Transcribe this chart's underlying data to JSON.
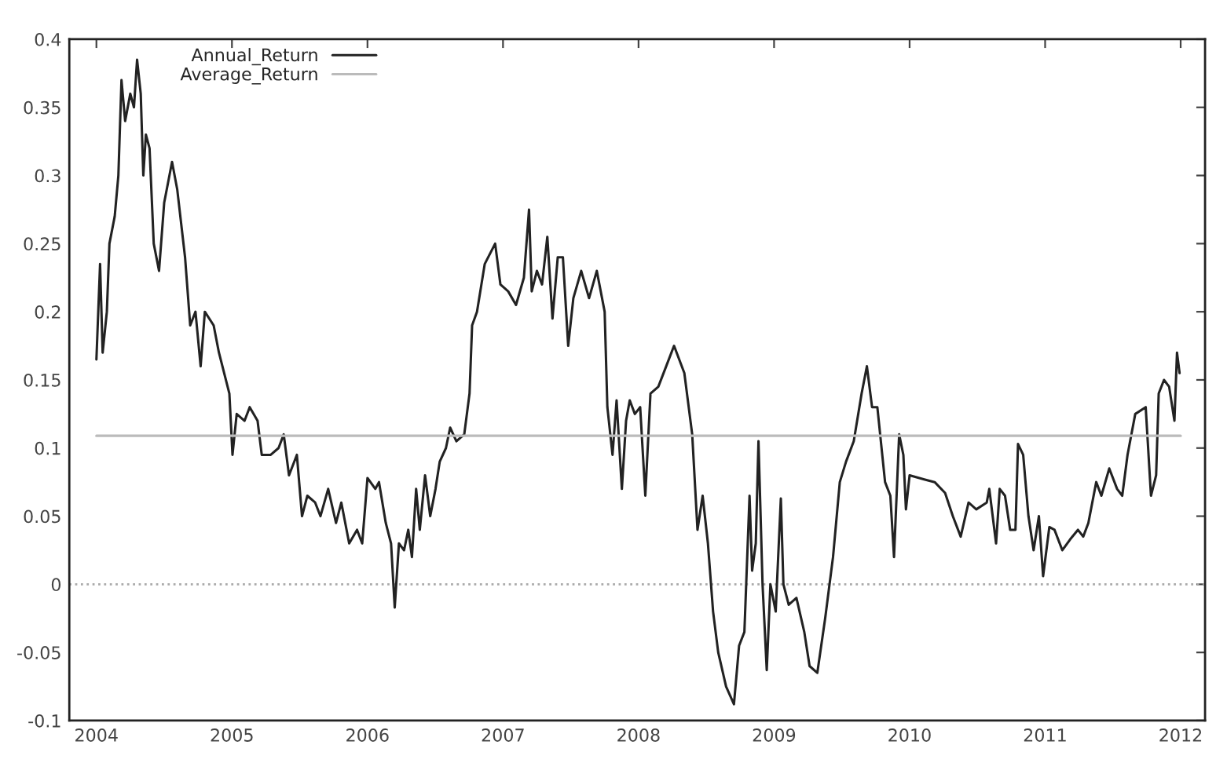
{
  "chart_data": {
    "type": "line",
    "xlim": [
      2003.8,
      2012.18
    ],
    "ylim": [
      -0.1,
      0.4
    ],
    "xticks": [
      2004,
      2005,
      2006,
      2007,
      2008,
      2009,
      2010,
      2011,
      2012
    ],
    "yticks": [
      -0.1,
      -0.05,
      0,
      0.05,
      0.1,
      0.15,
      0.2,
      0.25,
      0.3,
      0.35,
      0.4
    ],
    "grid": false,
    "legend": "top left",
    "marker": "none",
    "line_style": "solid",
    "ref_lines": [
      {
        "axis": "y",
        "value": 0,
        "color": "#aaaaaa",
        "line_style": "dotted"
      }
    ],
    "series": [
      {
        "name": "Annual_Return",
        "color": "#222222",
        "x": [
          2004.0,
          2004.027,
          2004.046,
          2004.077,
          2004.096,
          2004.135,
          2004.162,
          2004.185,
          2004.212,
          2004.25,
          2004.277,
          2004.3,
          2004.327,
          2004.346,
          2004.365,
          2004.392,
          2004.423,
          2004.462,
          2004.5,
          2004.558,
          2004.596,
          2004.654,
          2004.692,
          2004.731,
          2004.769,
          2004.8,
          2004.865,
          2004.904,
          2004.981,
          2005.004,
          2005.035,
          2005.093,
          2005.131,
          2005.189,
          2005.22,
          2005.286,
          2005.344,
          2005.382,
          2005.421,
          2005.479,
          2005.517,
          2005.556,
          2005.614,
          2005.653,
          2005.71,
          2005.768,
          2005.807,
          2005.865,
          2005.923,
          2005.961,
          2006.0,
          2006.058,
          2006.085,
          2006.135,
          2006.174,
          2006.201,
          2006.232,
          2006.27,
          2006.301,
          2006.328,
          2006.359,
          2006.386,
          2006.425,
          2006.463,
          2006.502,
          2006.533,
          2006.579,
          2006.61,
          2006.656,
          2006.714,
          2006.753,
          2006.772,
          2006.808,
          2006.865,
          2006.942,
          2006.981,
          2007.038,
          2007.096,
          2007.154,
          2007.192,
          2007.212,
          2007.25,
          2007.288,
          2007.327,
          2007.365,
          2007.404,
          2007.442,
          2007.481,
          2007.519,
          2007.577,
          2007.635,
          2007.692,
          2007.75,
          2007.77,
          2007.808,
          2007.838,
          2007.877,
          2007.908,
          2007.935,
          2007.973,
          2008.012,
          2008.05,
          2008.088,
          2008.146,
          2008.204,
          2008.262,
          2008.338,
          2008.396,
          2008.435,
          2008.473,
          2008.512,
          2008.55,
          2008.588,
          2008.646,
          2008.704,
          2008.742,
          2008.781,
          2008.819,
          2008.838,
          2008.865,
          2008.885,
          2008.915,
          2008.946,
          2008.973,
          2009.012,
          2009.05,
          2009.069,
          2009.108,
          2009.165,
          2009.223,
          2009.262,
          2009.319,
          2009.377,
          2009.435,
          2009.485,
          2009.531,
          2009.588,
          2009.646,
          2009.685,
          2009.723,
          2009.762,
          2009.819,
          2009.858,
          2009.885,
          2009.923,
          2009.954,
          2009.973,
          2010.0,
          2010.108,
          2010.185,
          2010.262,
          2010.319,
          2010.377,
          2010.435,
          2010.492,
          2010.569,
          2010.588,
          2010.638,
          2010.665,
          2010.704,
          2010.742,
          2010.781,
          2010.8,
          2010.838,
          2010.877,
          2010.915,
          2010.954,
          2010.985,
          2011.031,
          2011.069,
          2011.127,
          2011.185,
          2011.242,
          2011.281,
          2011.319,
          2011.377,
          2011.415,
          2011.473,
          2011.531,
          2011.569,
          2011.608,
          2011.665,
          2011.742,
          2011.781,
          2011.819,
          2011.838,
          2011.877,
          2011.915,
          2011.954,
          2011.973,
          2011.992
        ],
        "values": [
          0.165,
          0.235,
          0.17,
          0.2,
          0.25,
          0.27,
          0.3,
          0.37,
          0.34,
          0.36,
          0.35,
          0.385,
          0.36,
          0.3,
          0.33,
          0.32,
          0.25,
          0.23,
          0.28,
          0.31,
          0.29,
          0.24,
          0.19,
          0.2,
          0.16,
          0.2,
          0.19,
          0.17,
          0.14,
          0.095,
          0.125,
          0.12,
          0.13,
          0.12,
          0.095,
          0.095,
          0.1,
          0.11,
          0.08,
          0.095,
          0.05,
          0.065,
          0.06,
          0.05,
          0.07,
          0.045,
          0.06,
          0.03,
          0.04,
          0.03,
          0.078,
          0.07,
          0.075,
          0.045,
          0.03,
          -0.017,
          0.03,
          0.025,
          0.04,
          0.02,
          0.07,
          0.04,
          0.08,
          0.05,
          0.07,
          0.09,
          0.1,
          0.115,
          0.105,
          0.11,
          0.14,
          0.19,
          0.2,
          0.235,
          0.25,
          0.22,
          0.215,
          0.205,
          0.225,
          0.275,
          0.215,
          0.23,
          0.22,
          0.255,
          0.195,
          0.24,
          0.24,
          0.175,
          0.21,
          0.23,
          0.21,
          0.23,
          0.2,
          0.13,
          0.095,
          0.135,
          0.07,
          0.12,
          0.135,
          0.125,
          0.13,
          0.065,
          0.14,
          0.145,
          0.16,
          0.175,
          0.155,
          0.11,
          0.04,
          0.065,
          0.03,
          -0.02,
          -0.05,
          -0.075,
          -0.088,
          -0.045,
          -0.035,
          0.065,
          0.01,
          0.03,
          0.105,
          0.0,
          -0.063,
          0.0,
          -0.02,
          0.063,
          0.0,
          -0.015,
          -0.01,
          -0.035,
          -0.06,
          -0.065,
          -0.025,
          0.02,
          0.075,
          0.09,
          0.105,
          0.14,
          0.16,
          0.13,
          0.13,
          0.075,
          0.065,
          0.02,
          0.11,
          0.095,
          0.055,
          0.08,
          0.077,
          0.075,
          0.067,
          0.05,
          0.035,
          0.06,
          0.055,
          0.06,
          0.07,
          0.03,
          0.07,
          0.065,
          0.04,
          0.04,
          0.103,
          0.095,
          0.05,
          0.025,
          0.05,
          0.006,
          0.042,
          0.04,
          0.025,
          0.033,
          0.04,
          0.035,
          0.045,
          0.075,
          0.065,
          0.085,
          0.07,
          0.065,
          0.095,
          0.125,
          0.13,
          0.065,
          0.08,
          0.14,
          0.15,
          0.145,
          0.12,
          0.17,
          0.155
        ]
      },
      {
        "name": "Average_Return",
        "color": "#bbbbbb",
        "x": [
          2004.0,
          2012.0
        ],
        "values": [
          0.109,
          0.109
        ]
      }
    ]
  }
}
